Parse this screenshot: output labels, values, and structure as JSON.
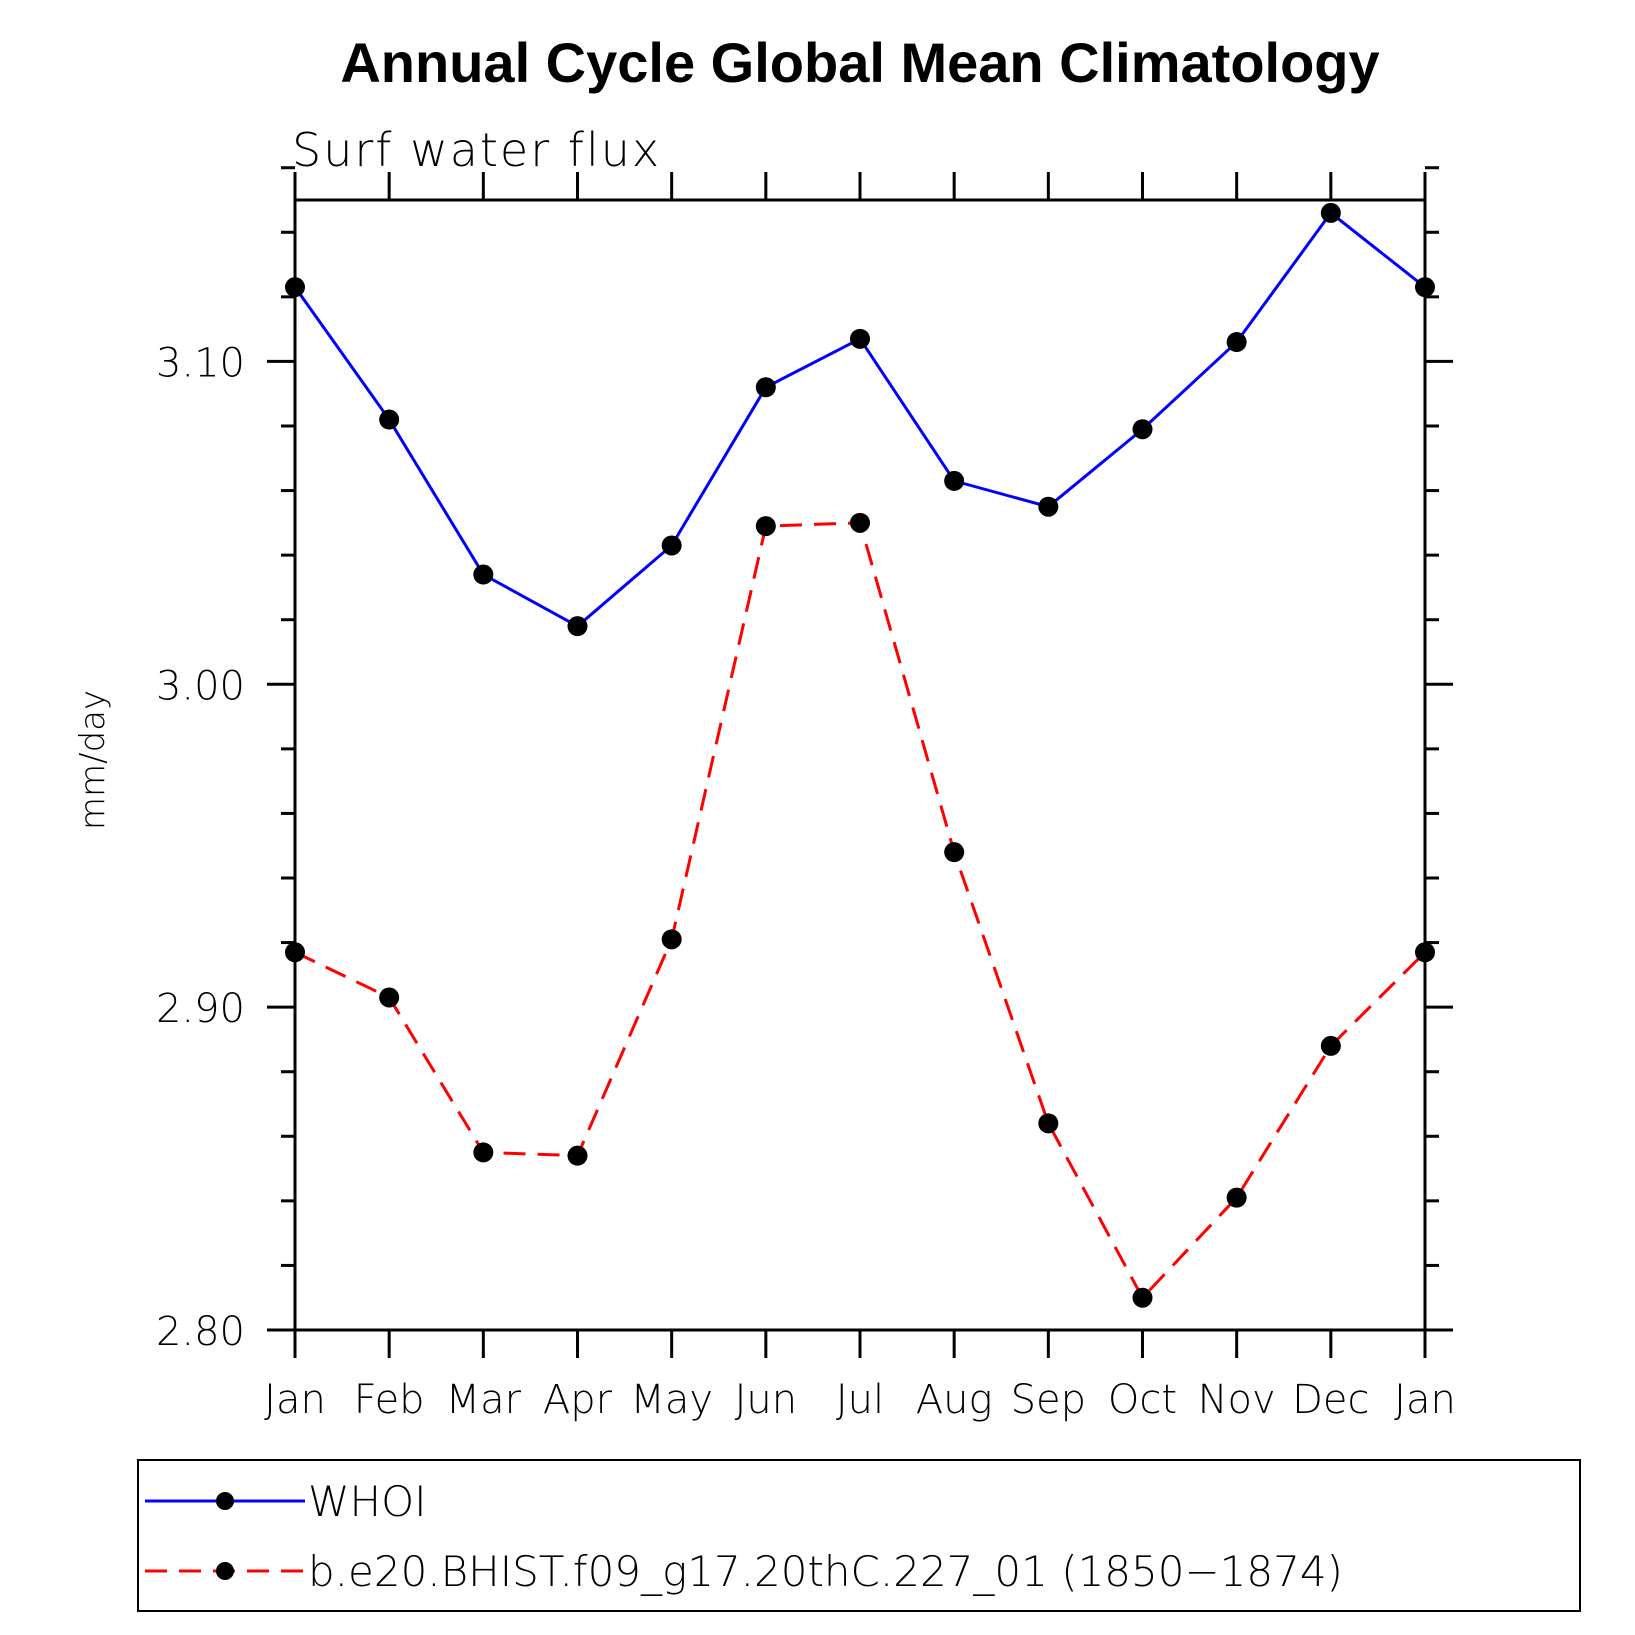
{
  "chart_data": {
    "type": "line",
    "title": "Annual Cycle Global Mean Climatology",
    "subtitle": "Surf water flux",
    "xlabel": "",
    "ylabel": "mm/day",
    "categories": [
      "Jan",
      "Feb",
      "Mar",
      "Apr",
      "May",
      "Jun",
      "Jul",
      "Aug",
      "Sep",
      "Oct",
      "Nov",
      "Dec",
      "Jan"
    ],
    "ylim": [
      2.8,
      3.15
    ],
    "yticks": [
      "2.80",
      "2.90",
      "3.00",
      "3.10"
    ],
    "ytick_values": [
      2.8,
      2.9,
      3.0,
      3.1
    ],
    "grid": false,
    "legend_position": "bottom",
    "series": [
      {
        "name": "WHOI",
        "color": "#0000ff",
        "style": "solid",
        "values": [
          3.123,
          3.082,
          3.034,
          3.018,
          3.043,
          3.092,
          3.107,
          3.063,
          3.055,
          3.079,
          3.106,
          3.146,
          3.123
        ]
      },
      {
        "name": "b.e20.BHIST.f09_g17.20thC.227_01 (1850−1874)",
        "color": "#ff0000",
        "style": "dashed",
        "values": [
          2.917,
          2.903,
          2.855,
          2.854,
          2.921,
          3.049,
          3.05,
          2.948,
          2.864,
          2.81,
          2.841,
          2.888,
          2.917
        ]
      }
    ]
  }
}
